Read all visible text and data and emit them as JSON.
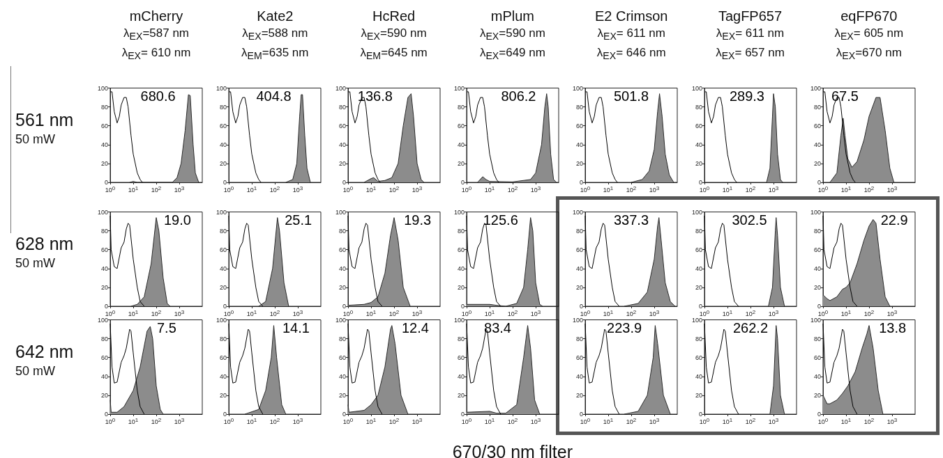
{
  "chart_data": [
    {
      "type": "area",
      "title": "mCherry",
      "subtitle": "λ$_{EX}$=587 nm\nλ$_{EX}$= 610 nm",
      "ylabel": "561 nm\n50 mW",
      "annotations": [
        "680.6"
      ],
      "log": "x",
      "marker": "none",
      "xlim": [
        1,
        10000
      ],
      "ylim": [
        0,
        100
      ],
      "xticks": [
        {
          "value": 1,
          "label": "10$^{0}$"
        },
        {
          "value": 10,
          "label": "10$^{1}$"
        },
        {
          "value": 100,
          "label": "10$^{2}$"
        },
        {
          "value": 1000,
          "label": "10$^{3}$"
        }
      ],
      "yticks": [
        0,
        20,
        40,
        60,
        80,
        100
      ],
      "series": [
        {
          "color": "#8c8c8c",
          "x": [
            7,
            10,
            15,
            500,
            800,
            1200,
            1800,
            2500,
            3000,
            4000,
            5000,
            7000
          ],
          "values": [
            0,
            1,
            0,
            0,
            5,
            20,
            55,
            93,
            92,
            40,
            10,
            0
          ]
        },
        {
          "type": "line",
          "color": "#000000",
          "x": [
            1,
            1.2,
            1.5,
            2,
            2.5,
            3,
            4,
            5,
            6,
            8,
            10,
            15,
            20,
            25
          ],
          "values": [
            96,
            96,
            75,
            63,
            70,
            82,
            90,
            90,
            80,
            50,
            30,
            10,
            3,
            0
          ]
        }
      ]
    },
    {
      "type": "area",
      "title": "Kate2",
      "subtitle": "λ$_{EX}$=588 nm\nλ$_{EM}$=635 nm",
      "annotations": [
        "404.8"
      ],
      "log": "x",
      "marker": "none",
      "xlim": [
        1,
        10000
      ],
      "ylim": [
        0,
        100
      ],
      "xticks": [
        {
          "value": 1,
          "label": "10$^{0}$"
        },
        {
          "value": 10,
          "label": "10$^{1}$"
        },
        {
          "value": 100,
          "label": "10$^{2}$"
        },
        {
          "value": 1000,
          "label": "10$^{3}$"
        }
      ],
      "yticks": [
        0,
        20,
        40,
        60,
        80,
        100
      ],
      "series": [
        {
          "color": "#8c8c8c",
          "x": [
            300,
            600,
            900,
            1200,
            1400,
            1600,
            2000,
            2500,
            3500
          ],
          "values": [
            0,
            3,
            20,
            70,
            93,
            93,
            50,
            15,
            0
          ]
        },
        {
          "type": "line",
          "color": "#000000",
          "x": [
            1,
            1.2,
            1.5,
            2,
            2.5,
            3,
            4,
            5,
            6,
            8,
            10,
            15,
            20,
            25
          ],
          "values": [
            96,
            96,
            75,
            63,
            70,
            82,
            90,
            90,
            80,
            50,
            30,
            10,
            3,
            0
          ]
        }
      ]
    },
    {
      "type": "area",
      "title": "HcRed",
      "subtitle": "λ$_{EX}$=590 nm\nλ$_{EM}$=645 nm",
      "annotations": [
        "136.8"
      ],
      "log": "x",
      "marker": "none",
      "xlim": [
        1,
        10000
      ],
      "ylim": [
        0,
        100
      ],
      "xticks": [
        {
          "value": 1,
          "label": "10$^{0}$"
        },
        {
          "value": 10,
          "label": "10$^{1}$"
        },
        {
          "value": 100,
          "label": "10$^{2}$"
        },
        {
          "value": 1000,
          "label": "10$^{3}$"
        }
      ],
      "yticks": [
        0,
        20,
        40,
        60,
        80,
        100
      ],
      "series": [
        {
          "color": "#8c8c8c",
          "x": [
            5,
            10,
            13,
            20,
            40,
            80,
            150,
            250,
            400,
            550,
            700,
            1000,
            1500,
            2000
          ],
          "values": [
            0,
            4,
            5,
            1,
            2,
            5,
            20,
            60,
            90,
            94,
            70,
            20,
            3,
            0
          ]
        },
        {
          "type": "line",
          "color": "#000000",
          "x": [
            1,
            1.2,
            1.5,
            2,
            2.5,
            3,
            4,
            5,
            6,
            8,
            10,
            15,
            20,
            25
          ],
          "values": [
            96,
            96,
            75,
            63,
            70,
            82,
            90,
            90,
            80,
            50,
            30,
            10,
            3,
            0
          ]
        }
      ]
    },
    {
      "type": "area",
      "title": "mPlum",
      "subtitle": "λ$_{EX}$=590 nm\nλ$_{EX}$=649 nm",
      "annotations": [
        "806.2"
      ],
      "log": "x",
      "marker": "none",
      "xlim": [
        1,
        10000
      ],
      "ylim": [
        0,
        100
      ],
      "xticks": [
        {
          "value": 1,
          "label": "10$^{0}$"
        },
        {
          "value": 10,
          "label": "10$^{1}$"
        },
        {
          "value": 100,
          "label": "10$^{2}$"
        },
        {
          "value": 1000,
          "label": "10$^{3}$"
        }
      ],
      "yticks": [
        0,
        20,
        40,
        60,
        80,
        100
      ],
      "series": [
        {
          "color": "#8c8c8c",
          "x": [
            3,
            5,
            7,
            10,
            100,
            600,
            1000,
            1800,
            2500,
            3000,
            3500,
            4500,
            6000,
            8000
          ],
          "values": [
            0,
            6,
            3,
            1,
            0.5,
            3,
            10,
            40,
            80,
            94,
            80,
            30,
            3,
            0
          ]
        },
        {
          "type": "line",
          "color": "#000000",
          "x": [
            1,
            1.2,
            1.5,
            2,
            2.5,
            3,
            4,
            5,
            6,
            8,
            10,
            15,
            20,
            25
          ],
          "values": [
            96,
            96,
            75,
            63,
            70,
            82,
            90,
            90,
            80,
            50,
            30,
            10,
            3,
            0
          ]
        }
      ]
    },
    {
      "type": "area",
      "title": "E2 Crimson",
      "subtitle": "λ$_{EX}$= 611 nm\nλ$_{EX}$= 646 nm",
      "annotations": [
        "501.8"
      ],
      "log": "x",
      "marker": "none",
      "xlim": [
        1,
        10000
      ],
      "ylim": [
        0,
        100
      ],
      "xticks": [
        {
          "value": 1,
          "label": "10$^{0}$"
        },
        {
          "value": 10,
          "label": "10$^{1}$"
        },
        {
          "value": 100,
          "label": "10$^{2}$"
        },
        {
          "value": 1000,
          "label": "10$^{3}$"
        }
      ],
      "yticks": [
        0,
        20,
        40,
        60,
        80,
        100
      ],
      "series": [
        {
          "color": "#8c8c8c",
          "x": [
            100,
            300,
            600,
            1000,
            1400,
            1700,
            2200,
            3000,
            4500,
            7000
          ],
          "values": [
            0,
            3,
            12,
            35,
            75,
            94,
            70,
            30,
            8,
            0
          ]
        },
        {
          "type": "line",
          "color": "#000000",
          "x": [
            1,
            1.2,
            1.5,
            2,
            2.5,
            3,
            4,
            5,
            6,
            8,
            10,
            15,
            20,
            25
          ],
          "values": [
            96,
            96,
            75,
            63,
            70,
            82,
            90,
            90,
            80,
            50,
            30,
            10,
            3,
            0
          ]
        }
      ]
    },
    {
      "type": "area",
      "title": "TagFP657",
      "subtitle": "λ$_{EX}$= 611 nm\nλ$_{EX}$= 657 nm",
      "annotations": [
        "289.3"
      ],
      "log": "x",
      "marker": "none",
      "xlim": [
        1,
        10000
      ],
      "ylim": [
        0,
        100
      ],
      "xticks": [
        {
          "value": 1,
          "label": "10$^{0}$"
        },
        {
          "value": 10,
          "label": "10$^{1}$"
        },
        {
          "value": 100,
          "label": "10$^{2}$"
        },
        {
          "value": 1000,
          "label": "10$^{3}$"
        }
      ],
      "yticks": [
        0,
        20,
        40,
        60,
        80,
        100
      ],
      "series": [
        {
          "color": "#8c8c8c",
          "x": [
            500,
            700,
            900,
            1000,
            1200,
            1500,
            2000,
            2500
          ],
          "values": [
            0,
            15,
            70,
            94,
            80,
            30,
            3,
            0
          ]
        },
        {
          "type": "line",
          "color": "#000000",
          "x": [
            1,
            1.2,
            1.5,
            2,
            2.5,
            3,
            4,
            5,
            6,
            8,
            10,
            15,
            20,
            25
          ],
          "values": [
            96,
            96,
            75,
            63,
            70,
            82,
            90,
            90,
            80,
            50,
            30,
            10,
            3,
            0
          ]
        }
      ]
    },
    {
      "type": "area",
      "title": "eqFP670",
      "subtitle": "λ$_{EX}$= 605 nm\nλ$_{EX}$=670 nm",
      "annotations": [
        "67.5"
      ],
      "log": "x",
      "marker": "none",
      "xlim": [
        1,
        10000
      ],
      "ylim": [
        0,
        100
      ],
      "xticks": [
        {
          "value": 1,
          "label": "10$^{0}$"
        },
        {
          "value": 10,
          "label": "10$^{1}$"
        },
        {
          "value": 100,
          "label": "10$^{2}$"
        },
        {
          "value": 1000,
          "label": "10$^{3}$"
        }
      ],
      "yticks": [
        0,
        20,
        40,
        60,
        80,
        100
      ],
      "series": [
        {
          "color": "#8c8c8c",
          "x": [
            2,
            4,
            6,
            7.5,
            9,
            12,
            18,
            30,
            60,
            100,
            200,
            300,
            500,
            800,
            1200
          ],
          "values": [
            0,
            10,
            50,
            68,
            50,
            25,
            16,
            22,
            45,
            70,
            90,
            90,
            55,
            15,
            0
          ]
        },
        {
          "type": "line",
          "color": "#000000",
          "x": [
            1,
            1.2,
            1.5,
            2,
            2.5,
            3,
            4,
            5,
            6,
            8,
            10,
            15,
            20,
            25
          ],
          "values": [
            96,
            96,
            75,
            63,
            70,
            82,
            90,
            90,
            80,
            50,
            30,
            10,
            3,
            0
          ]
        }
      ]
    },
    {
      "type": "area",
      "ylabel": "628 nm\n50 mW",
      "annotations": [
        "19.0"
      ],
      "log": "x",
      "marker": "none",
      "xlim": [
        1,
        10000
      ],
      "ylim": [
        0,
        100
      ],
      "xticks": [
        {
          "value": 1,
          "label": "10$^{0}$"
        },
        {
          "value": 10,
          "label": "10$^{1}$"
        },
        {
          "value": 100,
          "label": "10$^{2}$"
        },
        {
          "value": 1000,
          "label": "10$^{3}$"
        }
      ],
      "yticks": [
        0,
        20,
        40,
        60,
        80,
        100
      ],
      "series": [
        {
          "color": "#8c8c8c",
          "x": [
            8,
            15,
            30,
            60,
            100,
            130,
            200,
            300,
            400
          ],
          "values": [
            0,
            2,
            10,
            45,
            94,
            80,
            30,
            3,
            0
          ]
        },
        {
          "type": "line",
          "color": "#000000",
          "x": [
            1,
            1.1,
            1.5,
            2,
            3,
            4,
            5,
            6,
            7,
            10,
            15,
            20,
            30
          ],
          "values": [
            96,
            60,
            42,
            40,
            62,
            68,
            82,
            88,
            86,
            50,
            20,
            5,
            0
          ]
        }
      ]
    },
    {
      "type": "area",
      "annotations": [
        "25.1"
      ],
      "log": "x",
      "marker": "none",
      "xlim": [
        1,
        10000
      ],
      "ylim": [
        0,
        100
      ],
      "xticks": [
        {
          "value": 1,
          "label": "10$^{0}$"
        },
        {
          "value": 10,
          "label": "10$^{1}$"
        },
        {
          "value": 100,
          "label": "10$^{2}$"
        },
        {
          "value": 1000,
          "label": "10$^{3}$"
        }
      ],
      "yticks": [
        0,
        20,
        40,
        60,
        80,
        100
      ],
      "series": [
        {
          "color": "#8c8c8c",
          "x": [
            20,
            40,
            80,
            130,
            160,
            250,
            400
          ],
          "values": [
            0,
            5,
            40,
            94,
            80,
            25,
            0
          ]
        },
        {
          "type": "line",
          "color": "#000000",
          "x": [
            1,
            1.1,
            1.5,
            2,
            3,
            4,
            5,
            6,
            7,
            10,
            15,
            20,
            30
          ],
          "values": [
            96,
            60,
            42,
            40,
            62,
            68,
            82,
            88,
            86,
            50,
            20,
            5,
            0
          ]
        }
      ]
    },
    {
      "type": "area",
      "annotations": [
        "19.3"
      ],
      "log": "x",
      "marker": "none",
      "xlim": [
        1,
        10000
      ],
      "ylim": [
        0,
        100
      ],
      "xticks": [
        {
          "value": 1,
          "label": "10$^{0}$"
        },
        {
          "value": 10,
          "label": "10$^{1}$"
        },
        {
          "value": 100,
          "label": "10$^{2}$"
        },
        {
          "value": 1000,
          "label": "10$^{3}$"
        }
      ],
      "yticks": [
        0,
        20,
        40,
        60,
        80,
        100
      ],
      "series": [
        {
          "color": "#8c8c8c",
          "x": [
            1,
            5,
            10,
            20,
            40,
            70,
            100,
            150,
            250,
            500
          ],
          "values": [
            1,
            2,
            4,
            10,
            35,
            75,
            94,
            70,
            20,
            0
          ]
        },
        {
          "type": "line",
          "color": "#000000",
          "x": [
            1,
            1.1,
            1.5,
            2,
            3,
            4,
            5,
            6,
            7,
            10,
            15,
            20,
            30
          ],
          "values": [
            96,
            60,
            42,
            40,
            62,
            68,
            82,
            88,
            86,
            50,
            20,
            5,
            0
          ]
        }
      ]
    },
    {
      "type": "area",
      "annotations": [
        "125.6"
      ],
      "log": "x",
      "marker": "none",
      "xlim": [
        1,
        10000
      ],
      "ylim": [
        0,
        100
      ],
      "xticks": [
        {
          "value": 1,
          "label": "10$^{0}$"
        },
        {
          "value": 10,
          "label": "10$^{1}$"
        },
        {
          "value": 100,
          "label": "10$^{2}$"
        },
        {
          "value": 1000,
          "label": "10$^{3}$"
        }
      ],
      "yticks": [
        0,
        20,
        40,
        60,
        80,
        100
      ],
      "series": [
        {
          "color": "#8c8c8c",
          "x": [
            1,
            5,
            10,
            20,
            50,
            150,
            300,
            450,
            600,
            750,
            1000,
            1500,
            2000
          ],
          "values": [
            2,
            2,
            2,
            1,
            0,
            3,
            20,
            60,
            94,
            80,
            25,
            2,
            0
          ]
        },
        {
          "type": "line",
          "color": "#000000",
          "x": [
            1,
            1.1,
            1.5,
            2,
            3,
            4,
            5,
            6,
            7,
            10,
            15,
            20,
            30
          ],
          "values": [
            96,
            60,
            42,
            40,
            62,
            68,
            82,
            88,
            86,
            50,
            20,
            5,
            0
          ]
        }
      ]
    },
    {
      "type": "area",
      "annotations": [
        "337.3"
      ],
      "log": "x",
      "marker": "none",
      "xlim": [
        1,
        10000
      ],
      "ylim": [
        0,
        100
      ],
      "xticks": [
        {
          "value": 1,
          "label": "10$^{0}$"
        },
        {
          "value": 10,
          "label": "10$^{1}$"
        },
        {
          "value": 100,
          "label": "10$^{2}$"
        },
        {
          "value": 1000,
          "label": "10$^{3}$"
        }
      ],
      "yticks": [
        0,
        20,
        40,
        60,
        80,
        100
      ],
      "series": [
        {
          "color": "#8c8c8c",
          "x": [
            50,
            200,
            500,
            1000,
            1400,
            1600,
            2000,
            3000,
            5000,
            8000
          ],
          "values": [
            0,
            3,
            15,
            50,
            85,
            94,
            70,
            25,
            5,
            0
          ]
        },
        {
          "type": "line",
          "color": "#000000",
          "x": [
            1,
            1.1,
            1.5,
            2,
            3,
            4,
            5,
            6,
            7,
            10,
            15,
            20,
            30
          ],
          "values": [
            96,
            60,
            42,
            40,
            62,
            68,
            82,
            88,
            86,
            50,
            20,
            5,
            0
          ]
        }
      ]
    },
    {
      "type": "area",
      "annotations": [
        "302.5"
      ],
      "log": "x",
      "marker": "none",
      "xlim": [
        1,
        10000
      ],
      "ylim": [
        0,
        100
      ],
      "xticks": [
        {
          "value": 1,
          "label": "10$^{0}$"
        },
        {
          "value": 10,
          "label": "10$^{1}$"
        },
        {
          "value": 100,
          "label": "10$^{2}$"
        },
        {
          "value": 1000,
          "label": "10$^{3}$"
        }
      ],
      "yticks": [
        0,
        20,
        40,
        60,
        80,
        100
      ],
      "series": [
        {
          "color": "#8c8c8c",
          "x": [
            600,
            900,
            1200,
            1300,
            1500,
            2000,
            3000
          ],
          "values": [
            0,
            20,
            80,
            94,
            75,
            20,
            0
          ]
        },
        {
          "type": "line",
          "color": "#000000",
          "x": [
            1,
            1.1,
            1.5,
            2,
            3,
            4,
            5,
            6,
            7,
            10,
            15,
            20,
            30
          ],
          "values": [
            96,
            60,
            42,
            40,
            62,
            68,
            82,
            88,
            86,
            50,
            20,
            5,
            0
          ]
        }
      ]
    },
    {
      "type": "area",
      "annotations": [
        "22.9"
      ],
      "log": "x",
      "marker": "none",
      "xlim": [
        1,
        10000
      ],
      "ylim": [
        0,
        100
      ],
      "xticks": [
        {
          "value": 1,
          "label": "10$^{0}$"
        },
        {
          "value": 10,
          "label": "10$^{1}$"
        },
        {
          "value": 100,
          "label": "10$^{2}$"
        },
        {
          "value": 1000,
          "label": "10$^{3}$"
        }
      ],
      "yticks": [
        0,
        20,
        40,
        60,
        80,
        100
      ],
      "series": [
        {
          "color": "#8c8c8c",
          "x": [
            1,
            1.5,
            2,
            4,
            7,
            10,
            15,
            30,
            60,
            100,
            150,
            200,
            300,
            500,
            800
          ],
          "values": [
            12,
            8,
            6,
            10,
            18,
            20,
            25,
            45,
            70,
            85,
            92,
            88,
            50,
            10,
            0
          ]
        },
        {
          "type": "line",
          "color": "#000000",
          "x": [
            1,
            1.1,
            1.5,
            2,
            3,
            4,
            5,
            6,
            7,
            10,
            15,
            20,
            30
          ],
          "values": [
            96,
            60,
            42,
            40,
            62,
            68,
            82,
            88,
            86,
            50,
            20,
            5,
            0
          ]
        }
      ]
    },
    {
      "type": "area",
      "ylabel": "642 nm\n50 mW",
      "annotations": [
        "7.5"
      ],
      "log": "x",
      "marker": "none",
      "xlim": [
        1,
        10000
      ],
      "ylim": [
        0,
        100
      ],
      "xticks": [
        {
          "value": 1,
          "label": "10$^{0}$"
        },
        {
          "value": 10,
          "label": "10$^{1}$"
        },
        {
          "value": 100,
          "label": "10$^{2}$"
        },
        {
          "value": 1000,
          "label": "10$^{3}$"
        }
      ],
      "yticks": [
        0,
        20,
        40,
        60,
        80,
        100
      ],
      "series": [
        {
          "color": "#8c8c8c",
          "x": [
            1,
            1.1,
            2,
            4,
            10,
            20,
            40,
            55,
            70,
            100,
            150,
            200
          ],
          "values": [
            15,
            2,
            2,
            8,
            25,
            50,
            88,
            93,
            80,
            30,
            5,
            0
          ]
        },
        {
          "type": "line",
          "color": "#000000",
          "x": [
            1,
            1.2,
            1.5,
            2,
            3,
            4,
            5,
            7,
            8,
            10,
            15,
            20,
            30
          ],
          "values": [
            96,
            50,
            33,
            34,
            55,
            62,
            70,
            90,
            88,
            65,
            25,
            8,
            0
          ]
        }
      ]
    },
    {
      "type": "area",
      "annotations": [
        "14.1"
      ],
      "log": "x",
      "marker": "none",
      "xlim": [
        1,
        10000
      ],
      "ylim": [
        0,
        100
      ],
      "xticks": [
        {
          "value": 1,
          "label": "10$^{0}$"
        },
        {
          "value": 10,
          "label": "10$^{1}$"
        },
        {
          "value": 100,
          "label": "10$^{2}$"
        },
        {
          "value": 1000,
          "label": "10$^{3}$"
        }
      ],
      "yticks": [
        0,
        20,
        40,
        60,
        80,
        100
      ],
      "series": [
        {
          "color": "#8c8c8c",
          "x": [
            5,
            20,
            40,
            70,
            90,
            120,
            200,
            300
          ],
          "values": [
            0,
            5,
            25,
            60,
            94,
            60,
            10,
            0
          ]
        },
        {
          "type": "line",
          "color": "#000000",
          "x": [
            1,
            1.2,
            1.5,
            2,
            3,
            4,
            5,
            7,
            8,
            10,
            15,
            20,
            30
          ],
          "values": [
            96,
            50,
            33,
            34,
            55,
            62,
            70,
            90,
            88,
            65,
            25,
            8,
            0
          ]
        }
      ]
    },
    {
      "type": "area",
      "annotations": [
        "12.4"
      ],
      "log": "x",
      "marker": "none",
      "xlim": [
        1,
        10000
      ],
      "ylim": [
        0,
        100
      ],
      "xticks": [
        {
          "value": 1,
          "label": "10$^{0}$"
        },
        {
          "value": 10,
          "label": "10$^{1}$"
        },
        {
          "value": 100,
          "label": "10$^{2}$"
        },
        {
          "value": 1000,
          "label": "10$^{3}$"
        }
      ],
      "yticks": [
        0,
        20,
        40,
        60,
        80,
        100
      ],
      "series": [
        {
          "color": "#8c8c8c",
          "x": [
            1,
            1.1,
            5,
            10,
            20,
            40,
            70,
            80,
            110,
            200,
            400
          ],
          "values": [
            10,
            2,
            4,
            10,
            20,
            50,
            90,
            94,
            75,
            20,
            0
          ]
        },
        {
          "type": "line",
          "color": "#000000",
          "x": [
            1,
            1.2,
            1.5,
            2,
            3,
            4,
            5,
            7,
            8,
            10,
            15,
            20,
            30
          ],
          "values": [
            96,
            50,
            33,
            34,
            55,
            62,
            70,
            90,
            88,
            65,
            25,
            8,
            0
          ]
        }
      ]
    },
    {
      "type": "area",
      "xlabel": "670/30 nm filter",
      "annotations": [
        "83.4"
      ],
      "log": "x",
      "marker": "none",
      "xlim": [
        1,
        10000
      ],
      "ylim": [
        0,
        100
      ],
      "xticks": [
        {
          "value": 1,
          "label": "10$^{0}$"
        },
        {
          "value": 10,
          "label": "10$^{1}$"
        },
        {
          "value": 100,
          "label": "10$^{2}$"
        },
        {
          "value": 1000,
          "label": "10$^{3}$"
        }
      ],
      "yticks": [
        0,
        20,
        40,
        60,
        80,
        100
      ],
      "series": [
        {
          "color": "#8c8c8c",
          "x": [
            1,
            10,
            20,
            50,
            150,
            300,
            450,
            600,
            900,
            1500
          ],
          "values": [
            2,
            3,
            1,
            1,
            10,
            60,
            94,
            70,
            15,
            0
          ]
        },
        {
          "type": "line",
          "color": "#000000",
          "x": [
            1,
            1.2,
            1.5,
            2,
            3,
            4,
            5,
            7,
            8,
            10,
            15,
            20,
            30
          ],
          "values": [
            96,
            50,
            33,
            34,
            55,
            62,
            70,
            90,
            88,
            65,
            25,
            8,
            0
          ]
        }
      ]
    },
    {
      "type": "area",
      "annotations": [
        "223.9"
      ],
      "log": "x",
      "marker": "none",
      "xlim": [
        1,
        10000
      ],
      "ylim": [
        0,
        100
      ],
      "xticks": [
        {
          "value": 1,
          "label": "10$^{0}$"
        },
        {
          "value": 10,
          "label": "10$^{1}$"
        },
        {
          "value": 100,
          "label": "10$^{2}$"
        },
        {
          "value": 1000,
          "label": "10$^{3}$"
        }
      ],
      "yticks": [
        0,
        20,
        40,
        60,
        80,
        100
      ],
      "series": [
        {
          "color": "#8c8c8c",
          "x": [
            50,
            200,
            500,
            900,
            1100,
            1400,
            2500,
            5000
          ],
          "values": [
            0,
            3,
            20,
            60,
            94,
            75,
            20,
            0
          ]
        },
        {
          "type": "line",
          "color": "#000000",
          "x": [
            1,
            1.2,
            1.5,
            2,
            3,
            4,
            5,
            7,
            8,
            10,
            15,
            20,
            30
          ],
          "values": [
            96,
            50,
            33,
            34,
            55,
            62,
            70,
            90,
            88,
            65,
            25,
            8,
            0
          ]
        }
      ]
    },
    {
      "type": "area",
      "annotations": [
        "262.2"
      ],
      "log": "x",
      "marker": "none",
      "xlim": [
        1,
        10000
      ],
      "ylim": [
        0,
        100
      ],
      "xticks": [
        {
          "value": 1,
          "label": "10$^{0}$"
        },
        {
          "value": 10,
          "label": "10$^{1}$"
        },
        {
          "value": 100,
          "label": "10$^{2}$"
        },
        {
          "value": 1000,
          "label": "10$^{3}$"
        }
      ],
      "yticks": [
        0,
        20,
        40,
        60,
        80,
        100
      ],
      "series": [
        {
          "color": "#8c8c8c",
          "x": [
            700,
            1000,
            1300,
            1500,
            2000,
            3000
          ],
          "values": [
            0,
            30,
            94,
            80,
            20,
            0
          ]
        },
        {
          "type": "line",
          "color": "#000000",
          "x": [
            1,
            1.2,
            1.5,
            2,
            3,
            4,
            5,
            7,
            8,
            10,
            15,
            20,
            30
          ],
          "values": [
            96,
            50,
            33,
            34,
            55,
            62,
            70,
            90,
            88,
            65,
            25,
            8,
            0
          ]
        }
      ]
    },
    {
      "type": "area",
      "annotations": [
        "13.8"
      ],
      "log": "x",
      "marker": "none",
      "xlim": [
        1,
        10000
      ],
      "ylim": [
        0,
        100
      ],
      "xticks": [
        {
          "value": 1,
          "label": "10$^{0}$"
        },
        {
          "value": 10,
          "label": "10$^{1}$"
        },
        {
          "value": 100,
          "label": "10$^{2}$"
        },
        {
          "value": 1000,
          "label": "10$^{3}$"
        }
      ],
      "yticks": [
        0,
        20,
        40,
        60,
        80,
        100
      ],
      "series": [
        {
          "color": "#8c8c8c",
          "x": [
            1,
            1.5,
            2,
            4,
            7,
            12,
            25,
            50,
            80,
            100,
            150,
            250,
            400
          ],
          "values": [
            20,
            11,
            11,
            15,
            22,
            30,
            45,
            70,
            85,
            94,
            70,
            25,
            0
          ]
        },
        {
          "type": "line",
          "color": "#000000",
          "x": [
            1,
            1.2,
            1.5,
            2,
            3,
            4,
            5,
            7,
            8,
            10,
            15,
            20,
            30
          ],
          "values": [
            96,
            50,
            33,
            34,
            55,
            62,
            70,
            90,
            88,
            65,
            25,
            8,
            0
          ]
        }
      ]
    }
  ]
}
